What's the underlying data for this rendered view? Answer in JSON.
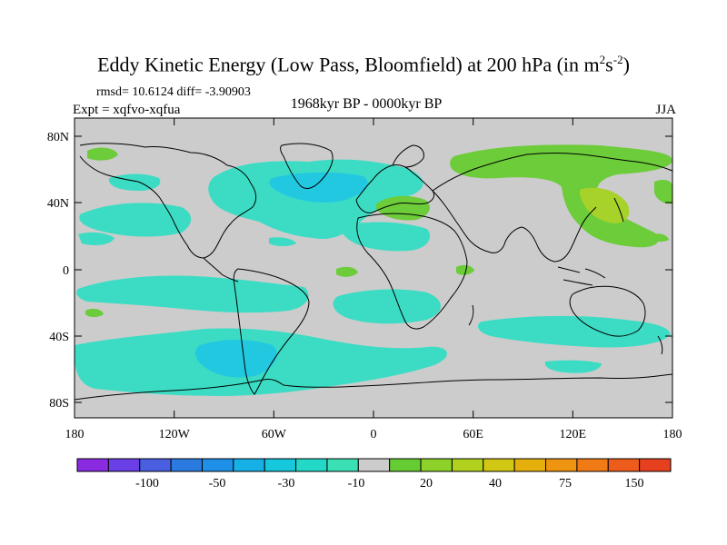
{
  "title": {
    "main": "Eddy Kinetic Energy (Low Pass, Bloomfield) at 200 hPa (in m",
    "sup1": "2",
    "mid": "s",
    "sup2": "-2",
    "end": ")"
  },
  "stats": "rmsd= 10.6124 diff= -3.90903",
  "experiment": "Expt = xqfvo-xqfua",
  "period": "1968kyr BP - 0000kyr BP",
  "season": "JJA",
  "lat_labels": [
    "80N",
    "40N",
    "0",
    "40S",
    "80S"
  ],
  "lon_labels": [
    "180",
    "120W",
    "60W",
    "0",
    "60E",
    "120E",
    "180"
  ],
  "colorbar": {
    "colors": [
      "#8a2be2",
      "#6a3fe6",
      "#4a5fe0",
      "#2a7ae0",
      "#1e90e8",
      "#17b0e6",
      "#16c8dc",
      "#24d8c8",
      "#3ae0b4",
      "#cccccc",
      "#66cc33",
      "#8cd22a",
      "#b0d21e",
      "#d2c814",
      "#e6b00c",
      "#ee9410",
      "#f07a16",
      "#ee5c1c",
      "#e6401e"
    ],
    "labels": [
      "-100",
      "-50",
      "-30",
      "-10",
      "20",
      "40",
      "75",
      "150"
    ]
  },
  "colors": {
    "neutral": "#cccccc",
    "negative": "#3cdcc4",
    "negative_strong": "#22c8e0",
    "positive": "#6ccc3a",
    "positive_strong": "#a6d22a"
  }
}
